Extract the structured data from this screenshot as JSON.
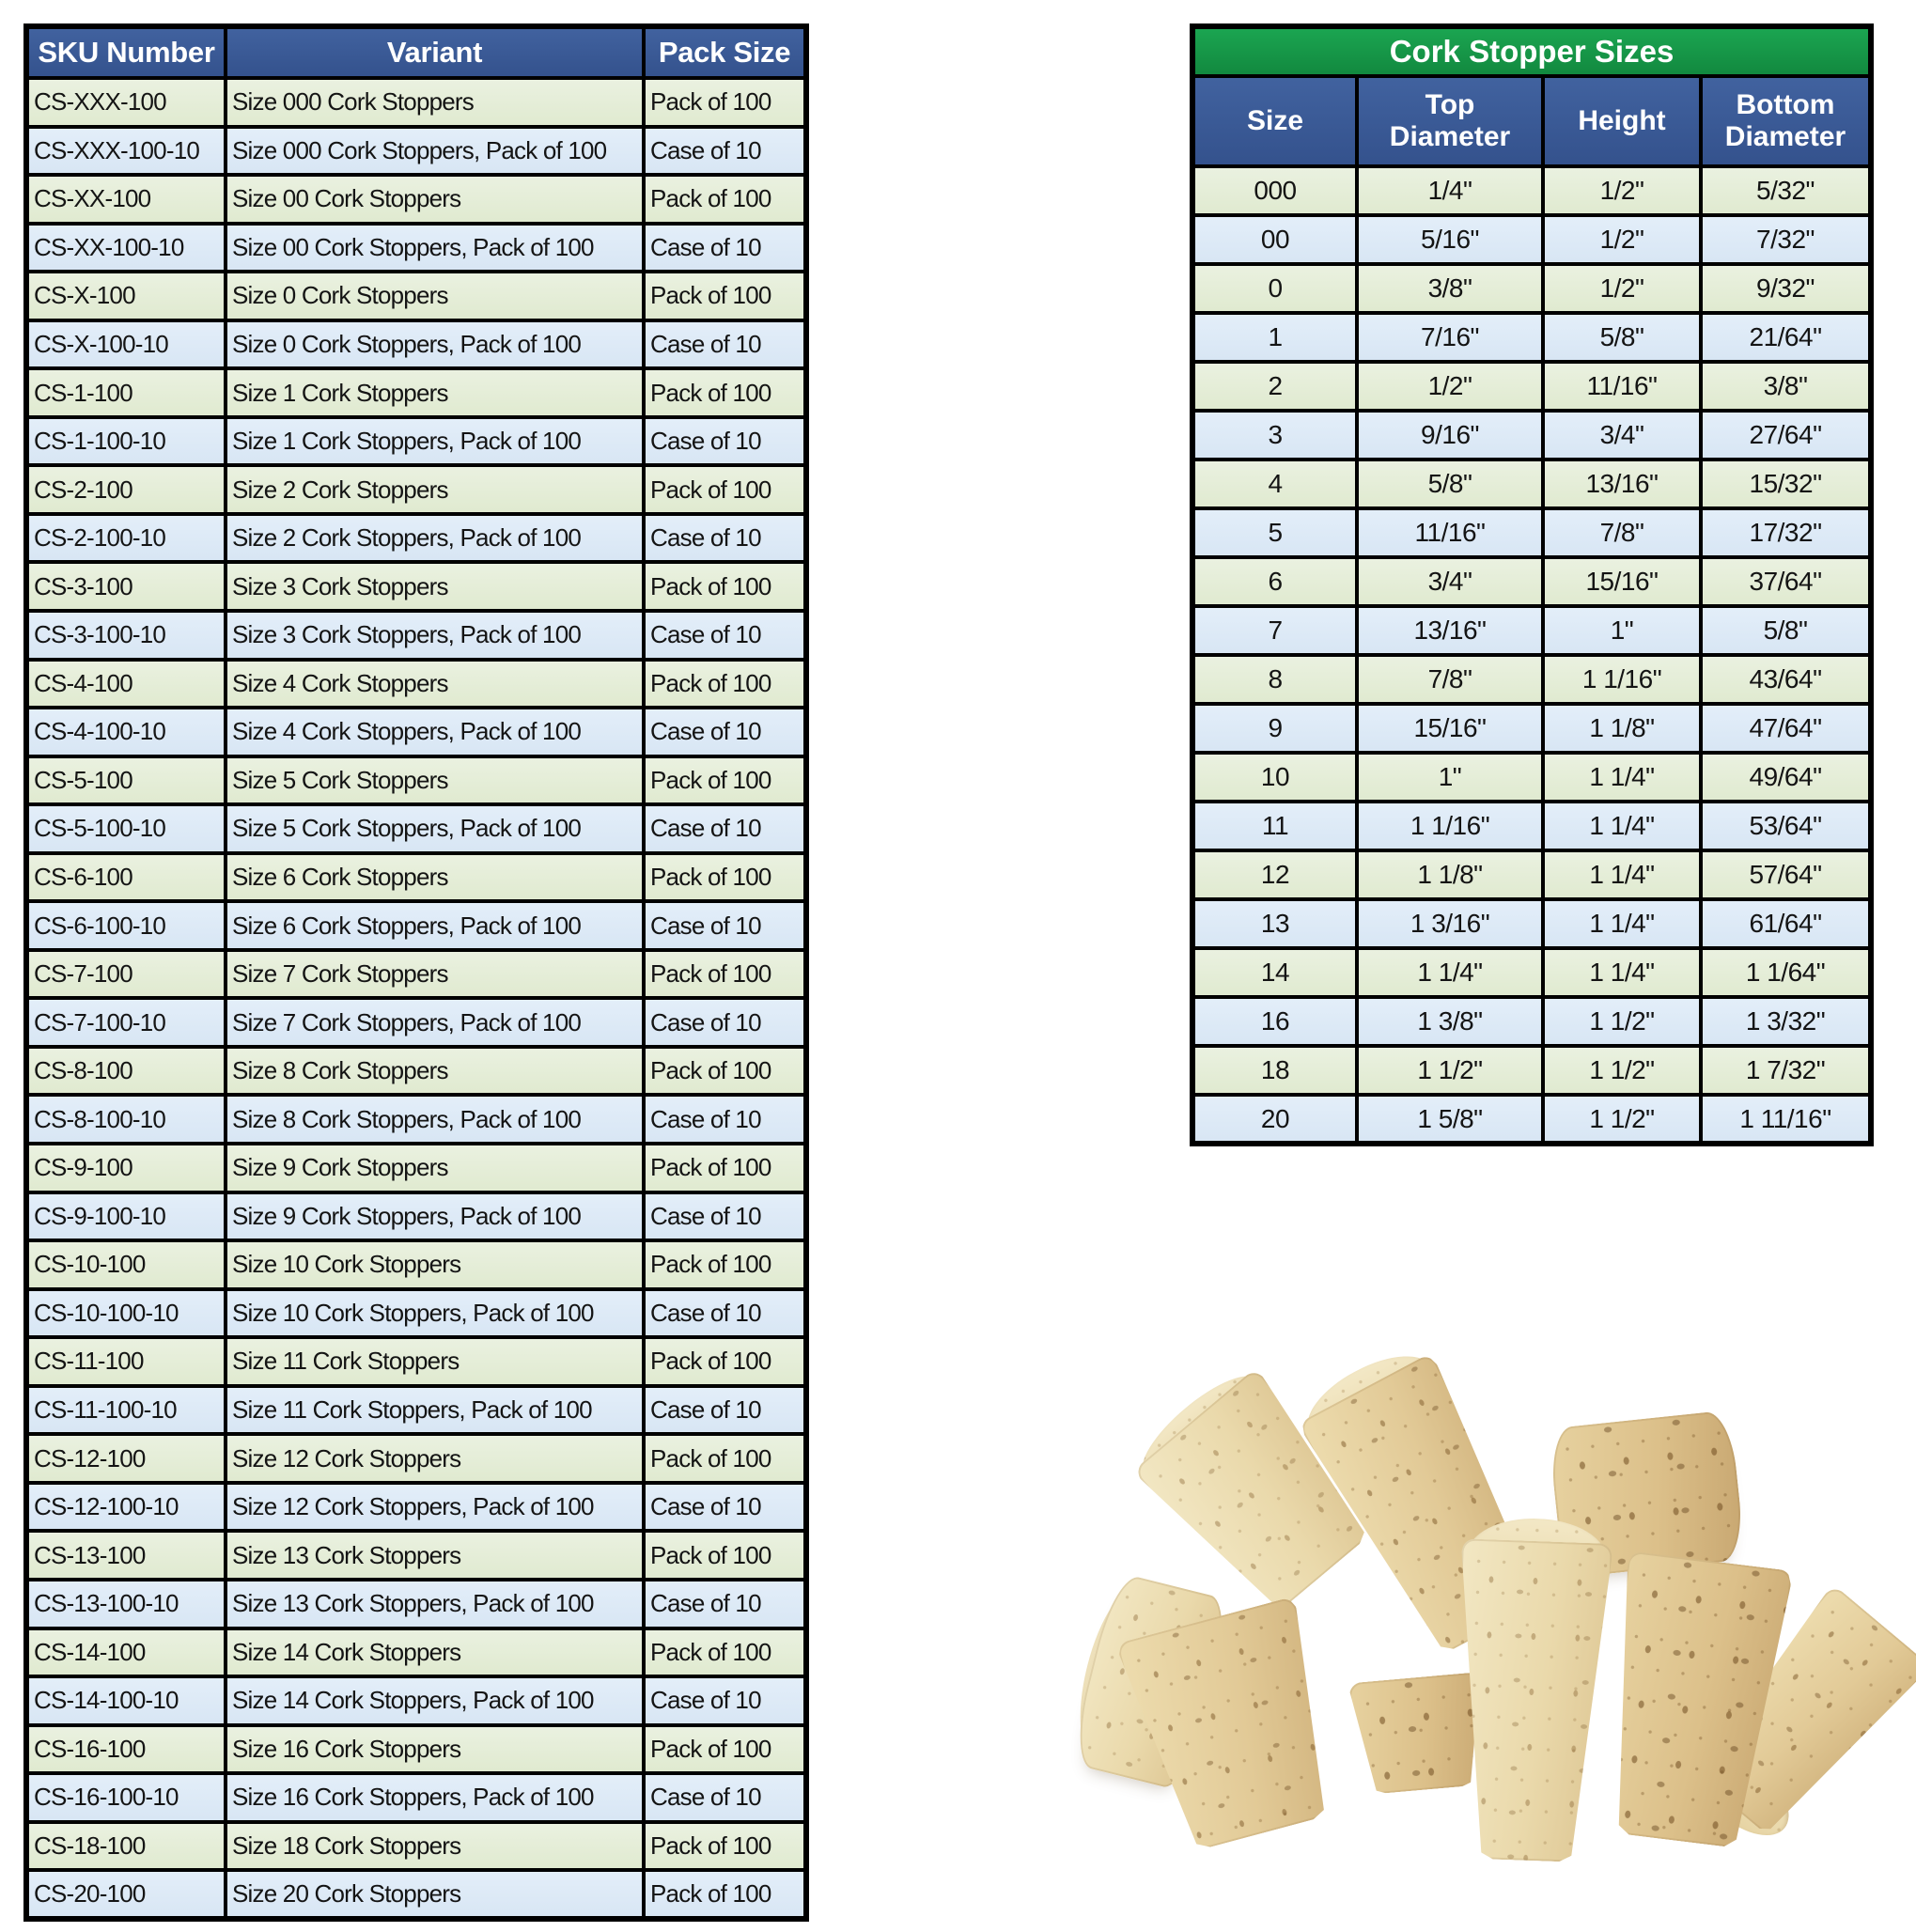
{
  "left_table": {
    "headers": [
      "SKU Number",
      "Variant",
      "Pack Size"
    ],
    "rows": [
      [
        "CS-XXX-100",
        "Size 000 Cork Stoppers",
        "Pack of 100"
      ],
      [
        "CS-XXX-100-10",
        "Size 000 Cork Stoppers, Pack of 100",
        "Case of 10"
      ],
      [
        "CS-XX-100",
        "Size 00 Cork Stoppers",
        "Pack of 100"
      ],
      [
        "CS-XX-100-10",
        "Size 00 Cork Stoppers, Pack of 100",
        "Case of 10"
      ],
      [
        "CS-X-100",
        "Size 0 Cork Stoppers",
        "Pack of 100"
      ],
      [
        "CS-X-100-10",
        "Size 0 Cork Stoppers, Pack of 100",
        "Case of 10"
      ],
      [
        "CS-1-100",
        "Size 1 Cork Stoppers",
        "Pack of 100"
      ],
      [
        "CS-1-100-10",
        "Size 1 Cork Stoppers, Pack of 100",
        "Case of 10"
      ],
      [
        "CS-2-100",
        "Size 2 Cork Stoppers",
        "Pack of 100"
      ],
      [
        "CS-2-100-10",
        "Size 2 Cork Stoppers, Pack of 100",
        "Case of 10"
      ],
      [
        "CS-3-100",
        "Size 3 Cork Stoppers",
        "Pack of 100"
      ],
      [
        "CS-3-100-10",
        "Size 3 Cork Stoppers, Pack of 100",
        "Case of 10"
      ],
      [
        "CS-4-100",
        "Size 4 Cork Stoppers",
        "Pack of 100"
      ],
      [
        "CS-4-100-10",
        "Size 4 Cork Stoppers, Pack of 100",
        "Case of 10"
      ],
      [
        "CS-5-100",
        "Size 5 Cork Stoppers",
        "Pack of 100"
      ],
      [
        "CS-5-100-10",
        "Size 5 Cork Stoppers, Pack of 100",
        "Case of 10"
      ],
      [
        "CS-6-100",
        "Size 6 Cork Stoppers",
        "Pack of 100"
      ],
      [
        "CS-6-100-10",
        "Size 6 Cork Stoppers, Pack of 100",
        "Case of 10"
      ],
      [
        "CS-7-100",
        "Size 7 Cork Stoppers",
        "Pack of 100"
      ],
      [
        "CS-7-100-10",
        "Size 7 Cork Stoppers, Pack of 100",
        "Case of 10"
      ],
      [
        "CS-8-100",
        "Size 8 Cork Stoppers",
        "Pack of 100"
      ],
      [
        "CS-8-100-10",
        "Size 8 Cork Stoppers, Pack of 100",
        "Case of 10"
      ],
      [
        "CS-9-100",
        "Size 9 Cork Stoppers",
        "Pack of 100"
      ],
      [
        "CS-9-100-10",
        "Size 9 Cork Stoppers, Pack of 100",
        "Case of 10"
      ],
      [
        "CS-10-100",
        "Size 10 Cork Stoppers",
        "Pack of 100"
      ],
      [
        "CS-10-100-10",
        "Size 10 Cork Stoppers, Pack of 100",
        "Case of 10"
      ],
      [
        "CS-11-100",
        "Size 11 Cork Stoppers",
        "Pack of 100"
      ],
      [
        "CS-11-100-10",
        "Size 11 Cork Stoppers, Pack of 100",
        "Case of 10"
      ],
      [
        "CS-12-100",
        "Size 12 Cork Stoppers",
        "Pack of 100"
      ],
      [
        "CS-12-100-10",
        "Size 12 Cork Stoppers, Pack of 100",
        "Case of 10"
      ],
      [
        "CS-13-100",
        "Size 13 Cork Stoppers",
        "Pack of 100"
      ],
      [
        "CS-13-100-10",
        "Size 13 Cork Stoppers, Pack of 100",
        "Case of 10"
      ],
      [
        "CS-14-100",
        "Size 14 Cork Stoppers",
        "Pack of 100"
      ],
      [
        "CS-14-100-10",
        "Size 14 Cork Stoppers, Pack of 100",
        "Case of 10"
      ],
      [
        "CS-16-100",
        "Size 16 Cork Stoppers",
        "Pack of 100"
      ],
      [
        "CS-16-100-10",
        "Size 16 Cork Stoppers, Pack of 100",
        "Case of 10"
      ],
      [
        "CS-18-100",
        "Size 18 Cork Stoppers",
        "Pack of 100"
      ],
      [
        "CS-20-100",
        "Size 20 Cork Stoppers",
        "Pack of 100"
      ]
    ]
  },
  "right_table": {
    "title": "Cork Stopper Sizes",
    "headers": [
      "Size",
      "Top Diameter",
      "Height",
      "Bottom Diameter"
    ],
    "rows": [
      [
        "000",
        "1/4\"",
        "1/2\"",
        "5/32\""
      ],
      [
        "00",
        "5/16\"",
        "1/2\"",
        "7/32\""
      ],
      [
        "0",
        "3/8\"",
        "1/2\"",
        "9/32\""
      ],
      [
        "1",
        "7/16\"",
        "5/8\"",
        "21/64\""
      ],
      [
        "2",
        "1/2\"",
        "11/16\"",
        "3/8\""
      ],
      [
        "3",
        "9/16\"",
        "3/4\"",
        "27/64\""
      ],
      [
        "4",
        "5/8\"",
        "13/16\"",
        "15/32\""
      ],
      [
        "5",
        "11/16\"",
        "7/8\"",
        "17/32\""
      ],
      [
        "6",
        "3/4\"",
        "15/16\"",
        "37/64\""
      ],
      [
        "7",
        "13/16\"",
        "1\"",
        "5/8\""
      ],
      [
        "8",
        "7/8\"",
        "1 1/16\"",
        "43/64\""
      ],
      [
        "9",
        "15/16\"",
        "1 1/8\"",
        "47/64\""
      ],
      [
        "10",
        "1\"",
        "1 1/4\"",
        "49/64\""
      ],
      [
        "11",
        "1 1/16\"",
        "1 1/4\"",
        "53/64\""
      ],
      [
        "12",
        "1 1/8\"",
        "1 1/4\"",
        "57/64\""
      ],
      [
        "13",
        "1 3/16\"",
        "1 1/4\"",
        "61/64\""
      ],
      [
        "14",
        "1 1/4\"",
        "1 1/4\"",
        "1 1/64\""
      ],
      [
        "16",
        "1 3/8\"",
        "1 1/2\"",
        "1 3/32\""
      ],
      [
        "18",
        "1 1/2\"",
        "1 1/2\"",
        "1 7/32\""
      ],
      [
        "20",
        "1 5/8\"",
        "1 1/2\"",
        "1 11/16\""
      ]
    ]
  },
  "photo": {
    "label": "pile of tapered natural cork stoppers"
  },
  "colors": {
    "header_blue": "#3A5A9E",
    "header_green": "#18A04C",
    "row_green": "#E5EFD9",
    "row_blue": "#DEEAF6",
    "border": "#000000",
    "cork": "#E4CE9C"
  }
}
